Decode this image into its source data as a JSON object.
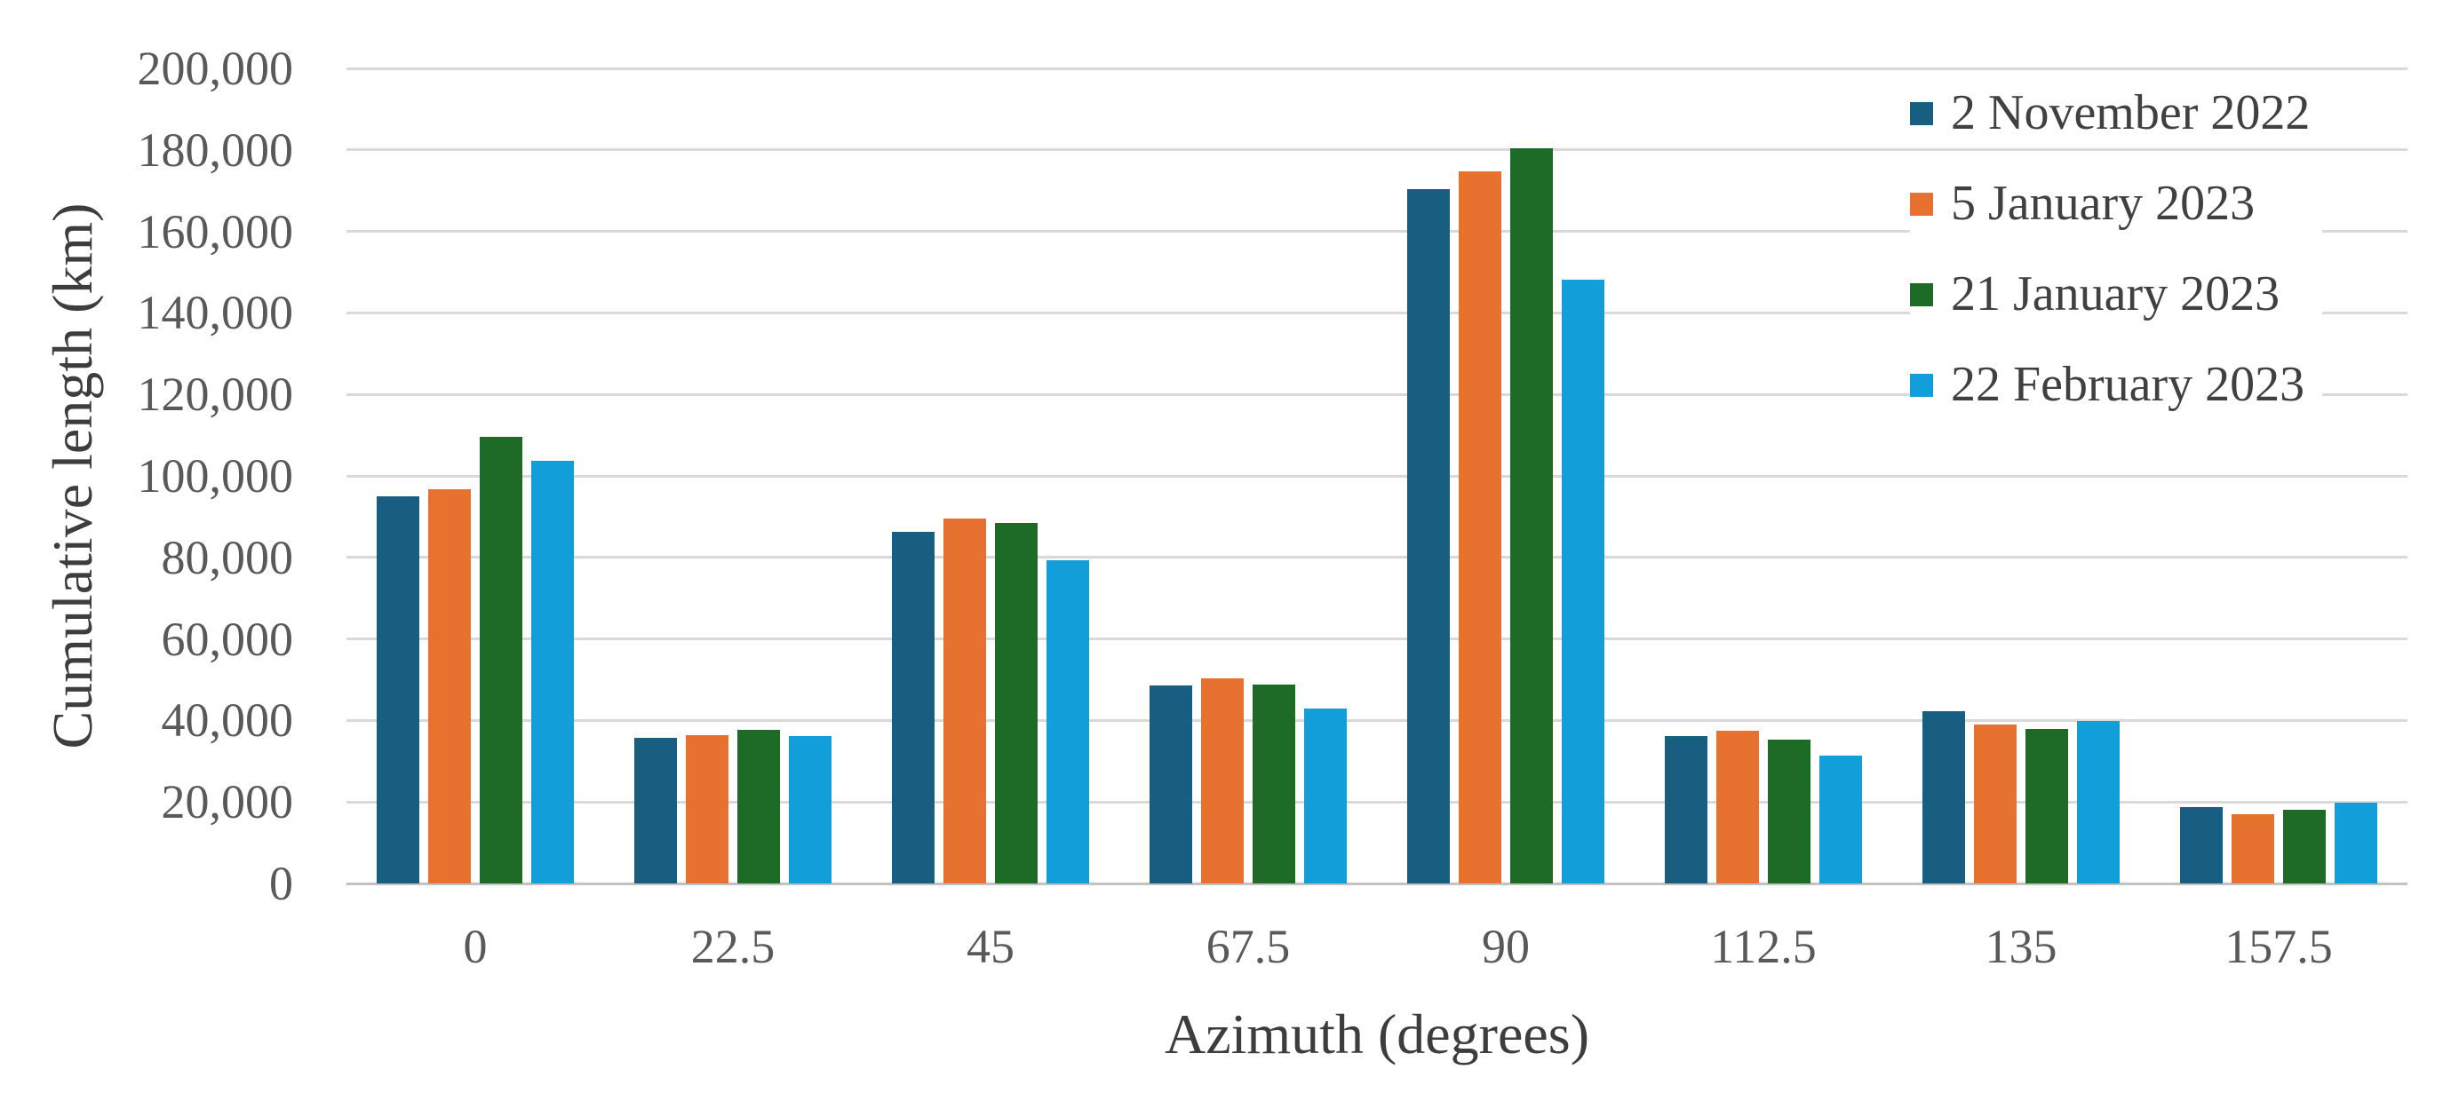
{
  "chart_data": {
    "type": "bar",
    "title": "",
    "xlabel": "Azimuth (degrees)",
    "ylabel": "Cumulative length (km)",
    "categories": [
      "0",
      "22.5",
      "45",
      "67.5",
      "90",
      "112.5",
      "135",
      "157.5"
    ],
    "series": [
      {
        "name": "2 November 2022",
        "color": "#175E80",
        "values": [
          95100,
          35700,
          86200,
          48600,
          170300,
          36200,
          42200,
          18800
        ]
      },
      {
        "name": "5 January 2023",
        "color": "#E7722F",
        "values": [
          96700,
          36400,
          89600,
          50300,
          174700,
          37500,
          39000,
          17100
        ]
      },
      {
        "name": "21 January 2023",
        "color": "#1D6B26",
        "values": [
          109500,
          37800,
          88400,
          48700,
          180500,
          35200,
          38000,
          18000
        ]
      },
      {
        "name": "22 February 2023",
        "color": "#129ED9",
        "values": [
          103600,
          36200,
          79300,
          43000,
          148200,
          31300,
          39900,
          19800
        ]
      }
    ],
    "ylim": [
      0,
      200000
    ],
    "ytick_interval": 20000,
    "ytick_labels": [
      "0",
      "20,000",
      "40,000",
      "60,000",
      "80,000",
      "100,000",
      "120,000",
      "140,000",
      "160,000",
      "180,000",
      "200,000"
    ],
    "grid": "horizontal",
    "legend_position": "top-right"
  },
  "colors": {
    "gridline": "#D9D9D9",
    "baseline": "#C2C2C2",
    "tick_text": "#595959",
    "title_text": "#3D3D3D",
    "legend_text": "#404040"
  }
}
